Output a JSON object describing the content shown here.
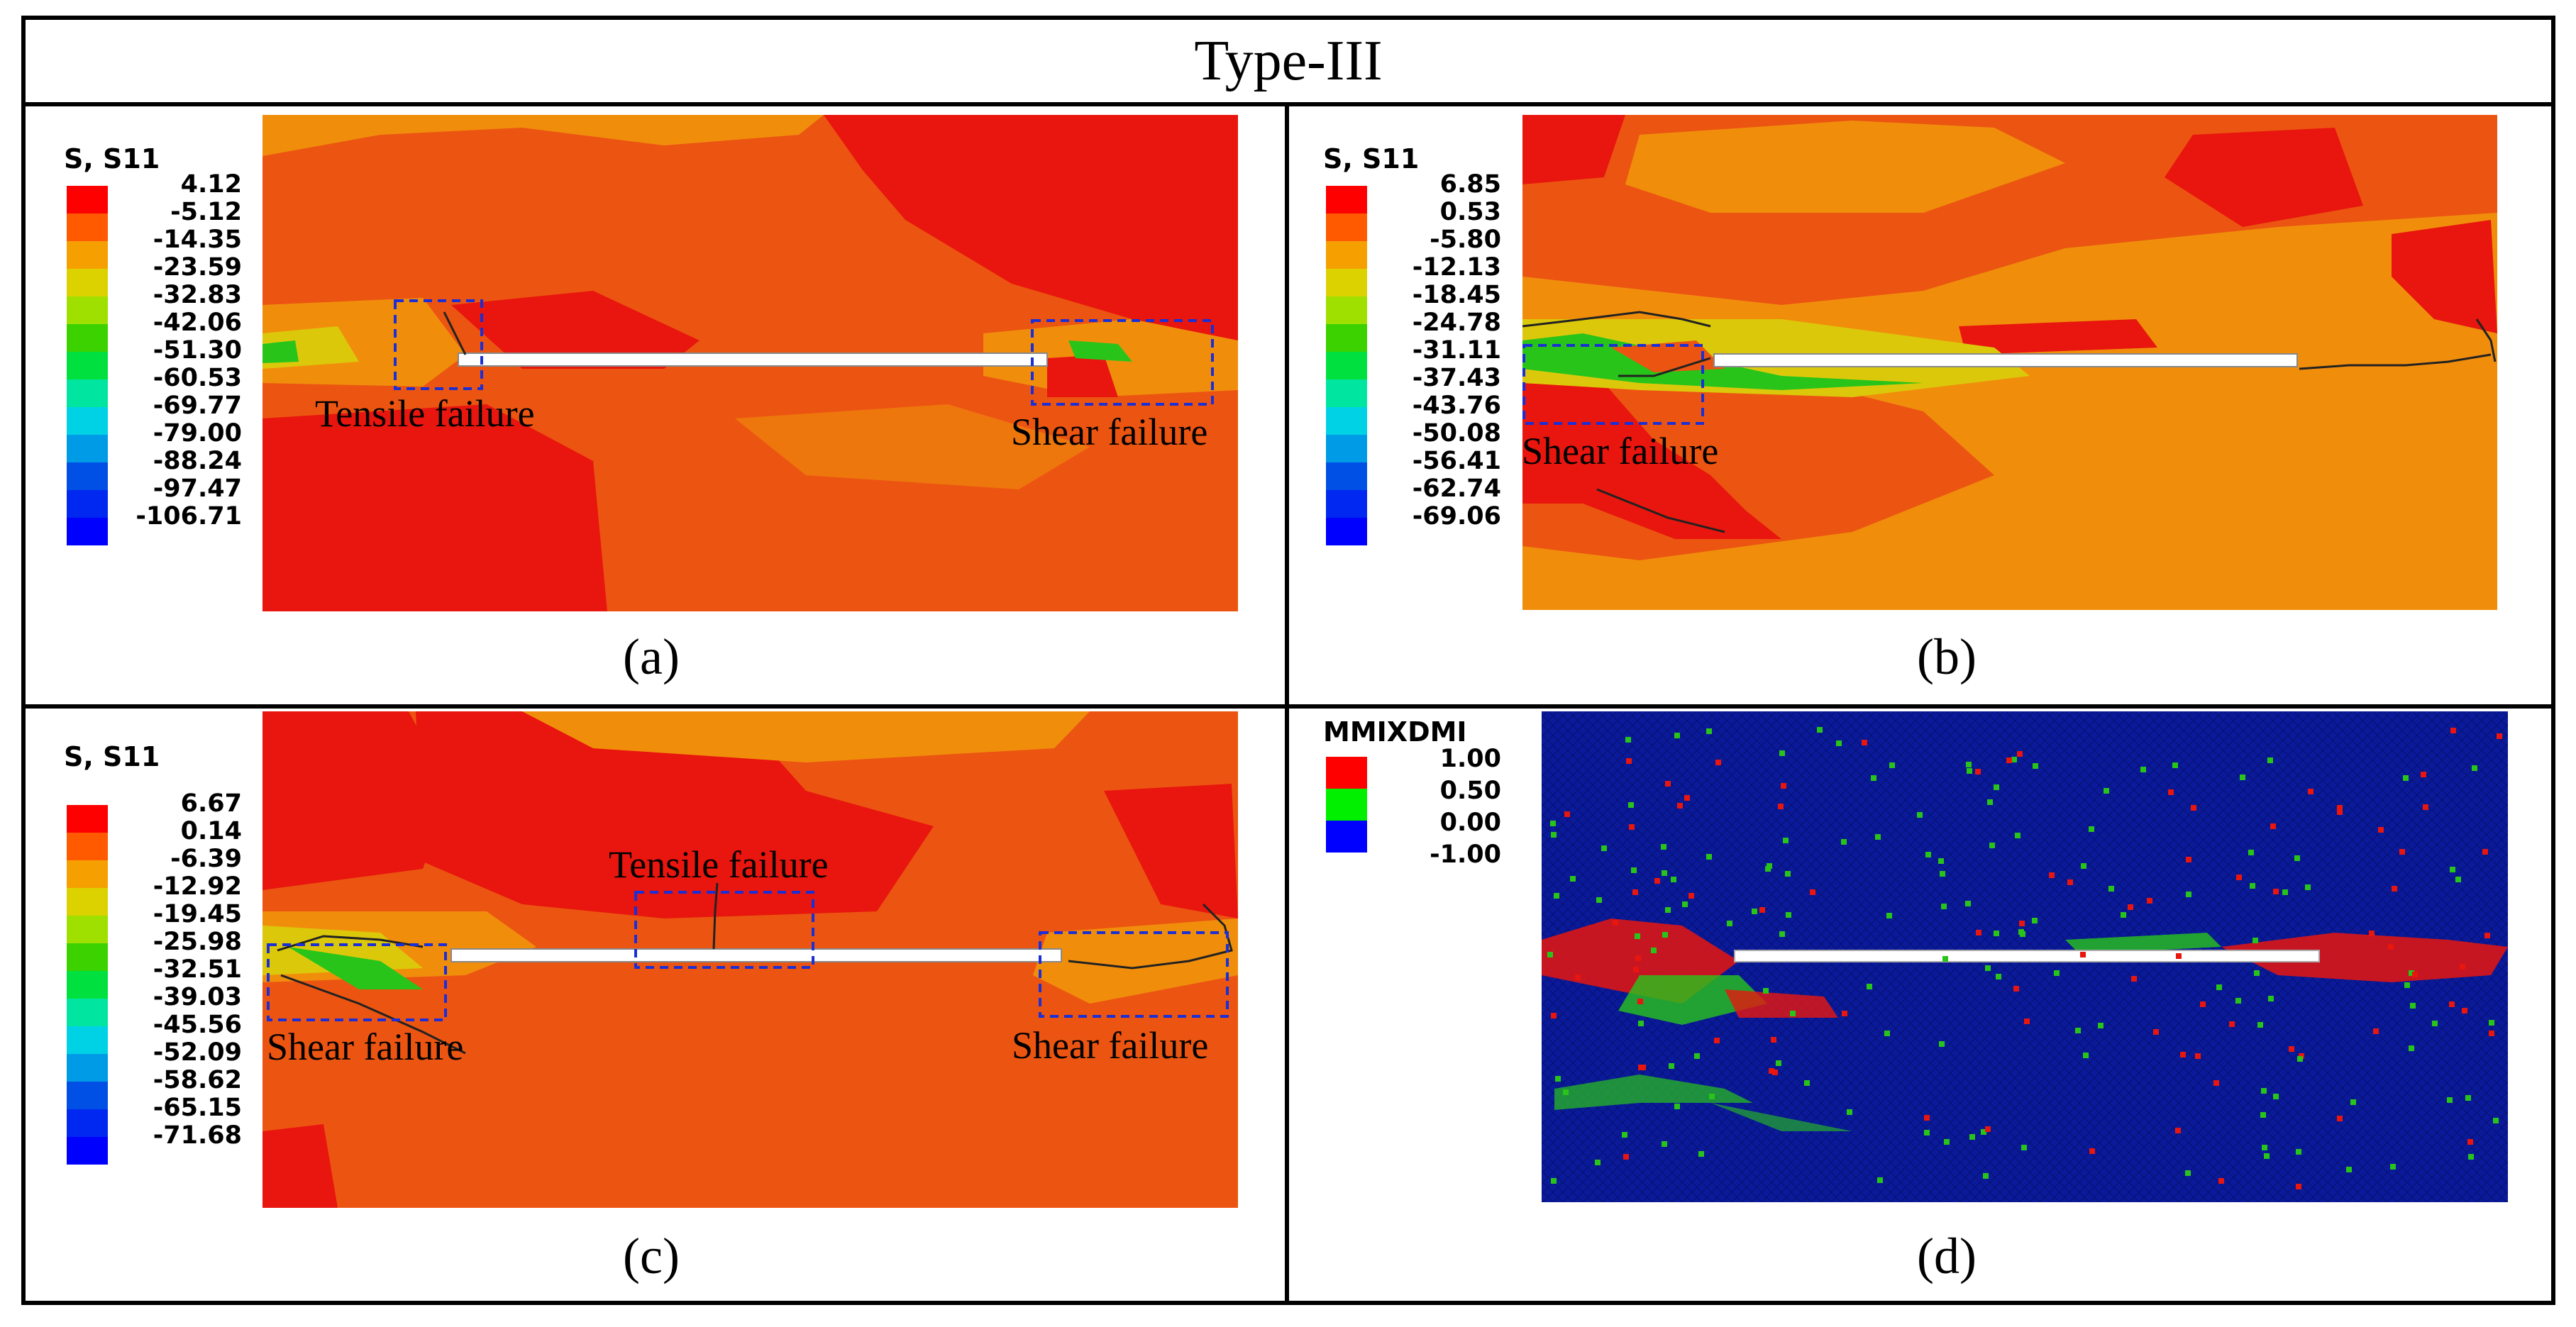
{
  "title": "Type-III",
  "colors": {
    "red": "#e8160e",
    "orange": "#ec5511",
    "amber": "#f08e0c",
    "yellow": "#dcc80a",
    "green": "#28c41a",
    "blue": "#0a1a9a",
    "box": "#1a2fd6"
  },
  "panels": {
    "a": {
      "caption": "(a)",
      "legend": {
        "title": "S, S11",
        "values": [
          "4.12",
          "-5.12",
          "-14.35",
          "-23.59",
          "-32.83",
          "-42.06",
          "-51.30",
          "-60.53",
          "-69.77",
          "-79.00",
          "-88.24",
          "-97.47",
          "-106.71"
        ]
      },
      "annotations": [
        "Tensile failure",
        "Shear failure"
      ]
    },
    "b": {
      "caption": "(b)",
      "legend": {
        "title": "S, S11",
        "values": [
          "6.85",
          "0.53",
          "-5.80",
          "-12.13",
          "-18.45",
          "-24.78",
          "-31.11",
          "-37.43",
          "-43.76",
          "-50.08",
          "-56.41",
          "-62.74",
          "-69.06"
        ]
      },
      "annotations": [
        "Shear failure"
      ]
    },
    "c": {
      "caption": "(c)",
      "legend": {
        "title": "S, S11",
        "values": [
          "6.67",
          "0.14",
          "-6.39",
          "-12.92",
          "-19.45",
          "-25.98",
          "-32.51",
          "-39.03",
          "-45.56",
          "-52.09",
          "-58.62",
          "-65.15",
          "-71.68"
        ]
      },
      "annotations": [
        "Tensile failure",
        "Shear failure",
        "Shear failure"
      ]
    },
    "d": {
      "caption": "(d)",
      "legend": {
        "title": "MMIXDMI",
        "values": [
          "1.00",
          "0.50",
          "0.00",
          "-1.00"
        ]
      }
    }
  }
}
